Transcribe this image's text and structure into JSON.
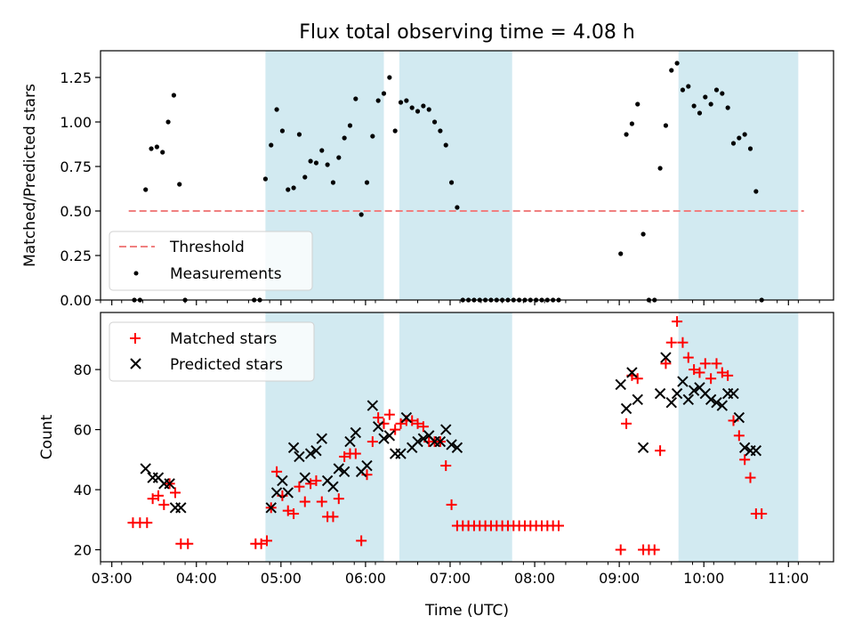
{
  "chart_data": [
    {
      "type": "scatter",
      "title": "Flux total observing time = 4.08 h",
      "xlabel": "",
      "ylabel": "Matched/Predicted stars",
      "ylim": [
        0,
        1.4
      ],
      "yticks": [
        "0.00",
        "0.25",
        "0.50",
        "0.75",
        "1.00",
        "1.25"
      ],
      "xlim": [
        "02:52",
        "11:32"
      ],
      "shaded_spans": [
        [
          "04:49",
          "06:13"
        ],
        [
          "06:24",
          "07:44"
        ],
        [
          "09:42",
          "11:07"
        ]
      ],
      "shade_color": "#add8e6",
      "legend_position": "lower left",
      "threshold": {
        "name": "Threshold",
        "value": 0.5,
        "x_range": [
          "03:12",
          "11:11"
        ],
        "color": "#f08080"
      },
      "series": [
        {
          "name": "Measurements",
          "color": "#000000",
          "points": [
            [
              "03:16",
              0.0
            ],
            [
              "03:20",
              0.0
            ],
            [
              "03:24",
              0.62
            ],
            [
              "03:28",
              0.85
            ],
            [
              "03:32",
              0.86
            ],
            [
              "03:36",
              0.83
            ],
            [
              "03:40",
              1.0
            ],
            [
              "03:44",
              1.15
            ],
            [
              "03:48",
              0.65
            ],
            [
              "03:52",
              0.0
            ],
            [
              "04:41",
              0.0
            ],
            [
              "04:45",
              0.0
            ],
            [
              "04:49",
              0.68
            ],
            [
              "04:53",
              0.87
            ],
            [
              "04:57",
              1.07
            ],
            [
              "05:01",
              0.95
            ],
            [
              "05:05",
              0.62
            ],
            [
              "05:09",
              0.63
            ],
            [
              "05:13",
              0.93
            ],
            [
              "05:17",
              0.69
            ],
            [
              "05:21",
              0.78
            ],
            [
              "05:25",
              0.77
            ],
            [
              "05:29",
              0.84
            ],
            [
              "05:33",
              0.76
            ],
            [
              "05:37",
              0.66
            ],
            [
              "05:41",
              0.8
            ],
            [
              "05:45",
              0.91
            ],
            [
              "05:49",
              0.98
            ],
            [
              "05:53",
              1.13
            ],
            [
              "05:57",
              0.48
            ],
            [
              "06:01",
              0.66
            ],
            [
              "06:05",
              0.92
            ],
            [
              "06:09",
              1.12
            ],
            [
              "06:13",
              1.16
            ],
            [
              "06:17",
              1.25
            ],
            [
              "06:21",
              0.95
            ],
            [
              "06:25",
              1.11
            ],
            [
              "06:29",
              1.12
            ],
            [
              "06:33",
              1.08
            ],
            [
              "06:37",
              1.06
            ],
            [
              "06:41",
              1.09
            ],
            [
              "06:45",
              1.07
            ],
            [
              "06:49",
              1.0
            ],
            [
              "06:53",
              0.95
            ],
            [
              "06:57",
              0.87
            ],
            [
              "07:01",
              0.66
            ],
            [
              "07:05",
              0.52
            ],
            [
              "07:09",
              0.0
            ],
            [
              "07:13",
              0.0
            ],
            [
              "07:17",
              0.0
            ],
            [
              "07:21",
              0.0
            ],
            [
              "07:25",
              0.0
            ],
            [
              "07:29",
              0.0
            ],
            [
              "07:33",
              0.0
            ],
            [
              "07:37",
              0.0
            ],
            [
              "07:41",
              0.0
            ],
            [
              "07:45",
              0.0
            ],
            [
              "07:49",
              0.0
            ],
            [
              "07:53",
              0.0
            ],
            [
              "07:57",
              0.0
            ],
            [
              "08:01",
              0.0
            ],
            [
              "08:05",
              0.0
            ],
            [
              "08:09",
              0.0
            ],
            [
              "08:13",
              0.0
            ],
            [
              "08:17",
              0.0
            ],
            [
              "09:01",
              0.26
            ],
            [
              "09:05",
              0.93
            ],
            [
              "09:09",
              0.99
            ],
            [
              "09:13",
              1.1
            ],
            [
              "09:17",
              0.37
            ],
            [
              "09:21",
              0.0
            ],
            [
              "09:25",
              0.0
            ],
            [
              "09:29",
              0.74
            ],
            [
              "09:33",
              0.98
            ],
            [
              "09:37",
              1.29
            ],
            [
              "09:41",
              1.33
            ],
            [
              "09:45",
              1.18
            ],
            [
              "09:49",
              1.2
            ],
            [
              "09:53",
              1.09
            ],
            [
              "09:57",
              1.05
            ],
            [
              "10:01",
              1.14
            ],
            [
              "10:05",
              1.1
            ],
            [
              "10:09",
              1.18
            ],
            [
              "10:13",
              1.16
            ],
            [
              "10:17",
              1.08
            ],
            [
              "10:21",
              0.88
            ],
            [
              "10:25",
              0.91
            ],
            [
              "10:29",
              0.93
            ],
            [
              "10:33",
              0.85
            ],
            [
              "10:37",
              0.61
            ],
            [
              "10:41",
              0.0
            ]
          ]
        }
      ]
    },
    {
      "type": "scatter",
      "title": "",
      "xlabel": "Time (UTC)",
      "ylabel": "Count",
      "ylim": [
        16,
        99
      ],
      "yticks": [
        "20",
        "40",
        "60",
        "80"
      ],
      "xticks": [
        "03:00",
        "04:00",
        "05:00",
        "06:00",
        "07:00",
        "08:00",
        "09:00",
        "10:00",
        "11:00"
      ],
      "xlim": [
        "02:52",
        "11:32"
      ],
      "shaded_spans": [
        [
          "04:49",
          "06:13"
        ],
        [
          "06:24",
          "07:44"
        ],
        [
          "09:42",
          "11:07"
        ]
      ],
      "legend_position": "upper left",
      "series": [
        {
          "name": "Matched stars",
          "color": "#ff0000",
          "marker": "plus",
          "points": [
            [
              "03:15",
              29
            ],
            [
              "03:20",
              29
            ],
            [
              "03:25",
              29
            ],
            [
              "03:29",
              37
            ],
            [
              "03:33",
              38
            ],
            [
              "03:37",
              35
            ],
            [
              "03:41",
              42
            ],
            [
              "03:45",
              39
            ],
            [
              "03:49",
              22
            ],
            [
              "03:54",
              22
            ],
            [
              "04:42",
              22
            ],
            [
              "04:46",
              22
            ],
            [
              "04:50",
              23
            ],
            [
              "04:53",
              34
            ],
            [
              "04:57",
              46
            ],
            [
              "05:01",
              38
            ],
            [
              "05:05",
              33
            ],
            [
              "05:09",
              32
            ],
            [
              "05:13",
              41
            ],
            [
              "05:17",
              36
            ],
            [
              "05:21",
              42
            ],
            [
              "05:25",
              43
            ],
            [
              "05:29",
              36
            ],
            [
              "05:33",
              31
            ],
            [
              "05:37",
              31
            ],
            [
              "05:41",
              37
            ],
            [
              "05:45",
              51
            ],
            [
              "05:49",
              52
            ],
            [
              "05:53",
              52
            ],
            [
              "05:57",
              23
            ],
            [
              "06:01",
              45
            ],
            [
              "06:05",
              56
            ],
            [
              "06:09",
              64
            ],
            [
              "06:13",
              62
            ],
            [
              "06:17",
              65
            ],
            [
              "06:21",
              60
            ],
            [
              "06:25",
              62
            ],
            [
              "06:29",
              63
            ],
            [
              "06:33",
              63
            ],
            [
              "06:37",
              62
            ],
            [
              "06:41",
              61
            ],
            [
              "06:45",
              56
            ],
            [
              "06:49",
              56
            ],
            [
              "06:53",
              56
            ],
            [
              "06:57",
              48
            ],
            [
              "07:01",
              35
            ],
            [
              "07:05",
              28
            ],
            [
              "07:09",
              28
            ],
            [
              "07:13",
              28
            ],
            [
              "07:17",
              28
            ],
            [
              "07:21",
              28
            ],
            [
              "07:25",
              28
            ],
            [
              "07:29",
              28
            ],
            [
              "07:33",
              28
            ],
            [
              "07:37",
              28
            ],
            [
              "07:41",
              28
            ],
            [
              "07:45",
              28
            ],
            [
              "07:49",
              28
            ],
            [
              "07:53",
              28
            ],
            [
              "07:57",
              28
            ],
            [
              "08:01",
              28
            ],
            [
              "08:05",
              28
            ],
            [
              "08:09",
              28
            ],
            [
              "08:13",
              28
            ],
            [
              "08:17",
              28
            ],
            [
              "09:01",
              20
            ],
            [
              "09:05",
              62
            ],
            [
              "09:09",
              78
            ],
            [
              "09:13",
              77
            ],
            [
              "09:17",
              20
            ],
            [
              "09:21",
              20
            ],
            [
              "09:25",
              20
            ],
            [
              "09:29",
              53
            ],
            [
              "09:33",
              82
            ],
            [
              "09:37",
              89
            ],
            [
              "09:41",
              96
            ],
            [
              "09:45",
              89
            ],
            [
              "09:49",
              84
            ],
            [
              "09:53",
              80
            ],
            [
              "09:57",
              79
            ],
            [
              "10:01",
              82
            ],
            [
              "10:05",
              77
            ],
            [
              "10:09",
              82
            ],
            [
              "10:13",
              79
            ],
            [
              "10:17",
              78
            ],
            [
              "10:21",
              63
            ],
            [
              "10:25",
              58
            ],
            [
              "10:29",
              50
            ],
            [
              "10:33",
              44
            ],
            [
              "10:37",
              32
            ],
            [
              "10:41",
              32
            ]
          ]
        },
        {
          "name": "Predicted stars",
          "color": "#000000",
          "marker": "x",
          "points": [
            [
              "03:24",
              47
            ],
            [
              "03:29",
              44
            ],
            [
              "03:33",
              44
            ],
            [
              "03:37",
              42
            ],
            [
              "03:41",
              42
            ],
            [
              "03:45",
              34
            ],
            [
              "03:49",
              34
            ],
            [
              "04:53",
              34
            ],
            [
              "04:57",
              39
            ],
            [
              "05:01",
              43
            ],
            [
              "05:05",
              39
            ],
            [
              "05:09",
              54
            ],
            [
              "05:13",
              51
            ],
            [
              "05:17",
              44
            ],
            [
              "05:21",
              52
            ],
            [
              "05:25",
              53
            ],
            [
              "05:29",
              57
            ],
            [
              "05:33",
              43
            ],
            [
              "05:37",
              41
            ],
            [
              "05:41",
              47
            ],
            [
              "05:45",
              46
            ],
            [
              "05:49",
              56
            ],
            [
              "05:53",
              59
            ],
            [
              "05:57",
              46
            ],
            [
              "06:01",
              48
            ],
            [
              "06:05",
              68
            ],
            [
              "06:09",
              61
            ],
            [
              "06:13",
              57
            ],
            [
              "06:17",
              58
            ],
            [
              "06:21",
              52
            ],
            [
              "06:25",
              52
            ],
            [
              "06:29",
              64
            ],
            [
              "06:33",
              54
            ],
            [
              "06:37",
              56
            ],
            [
              "06:41",
              57
            ],
            [
              "06:45",
              58
            ],
            [
              "06:49",
              56
            ],
            [
              "06:53",
              56
            ],
            [
              "06:57",
              60
            ],
            [
              "07:01",
              55
            ],
            [
              "07:05",
              54
            ],
            [
              "09:01",
              75
            ],
            [
              "09:05",
              67
            ],
            [
              "09:09",
              79
            ],
            [
              "09:13",
              70
            ],
            [
              "09:17",
              54
            ],
            [
              "09:29",
              72
            ],
            [
              "09:33",
              84
            ],
            [
              "09:37",
              69
            ],
            [
              "09:41",
              72
            ],
            [
              "09:45",
              76
            ],
            [
              "09:49",
              70
            ],
            [
              "09:53",
              73
            ],
            [
              "09:57",
              74
            ],
            [
              "10:01",
              72
            ],
            [
              "10:05",
              70
            ],
            [
              "10:09",
              69
            ],
            [
              "10:13",
              68
            ],
            [
              "10:17",
              72
            ],
            [
              "10:21",
              72
            ],
            [
              "10:25",
              64
            ],
            [
              "10:29",
              54
            ],
            [
              "10:33",
              53
            ],
            [
              "10:37",
              53
            ]
          ]
        }
      ]
    }
  ]
}
